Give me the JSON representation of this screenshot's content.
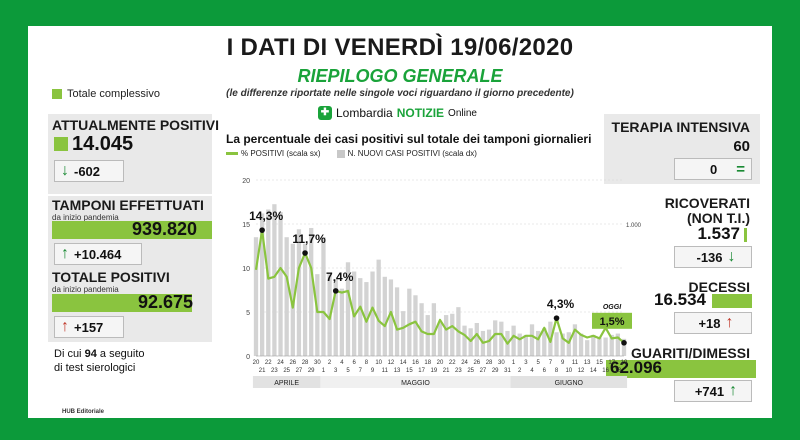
{
  "header": {
    "title": "I DATI DI VENERDÌ 19/06/2020",
    "subtitle": "RIEPILOGO GENERALE",
    "note": "(le differenze riportate nelle singole voci riguardano il giorno precedente)"
  },
  "brand": {
    "name_prefix": "Lombardia",
    "name_main": "NOTIZIE",
    "name_suffix": "Online"
  },
  "legend": {
    "totale": "Totale complessivo"
  },
  "left": {
    "positivi": {
      "label": "ATTUALMENTE POSITIVI",
      "value": "14.045",
      "delta": "-602"
    },
    "tamponi": {
      "label": "TAMPONI EFFETTUATI",
      "sublabel": "da inizio pandemia",
      "value": "939.820",
      "delta": "+10.464"
    },
    "totale_positivi": {
      "label": "TOTALE POSITIVI",
      "sublabel": "da inizio pandemia",
      "value": "92.675",
      "delta": "+157"
    },
    "sierologici": {
      "prefix": "Di cui",
      "count": "94",
      "text1": "a seguito",
      "text2": "di test sierologici"
    }
  },
  "right": {
    "terapia": {
      "label": "TERAPIA INTENSIVA",
      "value": "60",
      "delta": "0"
    },
    "ricoverati": {
      "label": "RICOVERATI",
      "label2": "(NON T.I.)",
      "value": "1.537",
      "delta": "-136"
    },
    "decessi": {
      "label": "DECESSI",
      "value": "16.534",
      "delta": "+18"
    },
    "guariti": {
      "label": "GUARITI/DIMESSI",
      "value": "62.096",
      "delta": "+741"
    }
  },
  "colors": {
    "brand_green": "#0c9a3a",
    "accent_green": "#8ac43f",
    "bar_gray": "#c8c8c8",
    "red": "#c0392b"
  },
  "footer": "HUB Editoriale",
  "chart_data": {
    "type": "line",
    "title": "La percentuale dei casi positivi sul totale dei tamponi giornalieri",
    "legend": [
      "% POSITIVI (scala sx)",
      "N. NUOVI CASI POSITIVI (scala dx)"
    ],
    "x": [
      "20",
      "21",
      "22",
      "23",
      "24",
      "25",
      "26",
      "27",
      "28",
      "29",
      "30",
      "1",
      "2",
      "3",
      "4",
      "5",
      "6",
      "7",
      "8",
      "9",
      "10",
      "11",
      "12",
      "13",
      "14",
      "15",
      "16",
      "17",
      "18",
      "19",
      "20",
      "21",
      "22",
      "23",
      "24",
      "25",
      "26",
      "27",
      "28",
      "29",
      "30",
      "31",
      "1",
      "2",
      "3",
      "4",
      "5",
      "6",
      "7",
      "8",
      "9",
      "10",
      "11",
      "12",
      "13",
      "14",
      "15",
      "16",
      "17",
      "18",
      "19"
    ],
    "months": [
      "APRILE",
      "MAGGIO",
      "GIUGNO"
    ],
    "ylim_left": [
      0,
      20
    ],
    "yticks_left": [
      "0",
      "5",
      "10",
      "15",
      "20"
    ],
    "ytick_right_label": "1.000",
    "series": [
      {
        "name": "% POSITIVI (scala sx)",
        "values": [
          9.8,
          14.3,
          8.8,
          9.0,
          10.0,
          9.0,
          5.5,
          10.0,
          11.7,
          10.0,
          5.0,
          5.0,
          4.2,
          7.4,
          7.2,
          7.4,
          4.5,
          5.6,
          3.9,
          5.5,
          4.0,
          3.4,
          5.0,
          3.0,
          3.2,
          3.6,
          3.9,
          2.8,
          2.5,
          2.5,
          4.1,
          3.0,
          3.4,
          2.8,
          2.4,
          1.7,
          2.5,
          1.5,
          1.7,
          2.5,
          2.5,
          1.4,
          2.3,
          1.9,
          2.3,
          2.3,
          1.9,
          3.2,
          1.6,
          4.3,
          2.0,
          1.5,
          3.0,
          2.4,
          2.1,
          2.3,
          2.0,
          3.2,
          2.0,
          2.1,
          1.5
        ]
      },
      {
        "name": "N. NUOVI CASI POSITIVI (scala dx)",
        "values": [
          900,
          1080,
          1110,
          1150,
          1090,
          900,
          850,
          960,
          850,
          970,
          620,
          900,
          620,
          580,
          510,
          710,
          640,
          590,
          560,
          640,
          730,
          600,
          580,
          520,
          340,
          510,
          460,
          400,
          310,
          400,
          250,
          310,
          320,
          370,
          230,
          210,
          250,
          190,
          200,
          270,
          260,
          190,
          230,
          170,
          160,
          240,
          190,
          210,
          260,
          180,
          170,
          180,
          240,
          170,
          120,
          160,
          140,
          140,
          160,
          170,
          130
        ]
      }
    ],
    "annotations": [
      {
        "label": "14,3%",
        "x": "21",
        "y": 14.3
      },
      {
        "label": "11,7%",
        "x": "28",
        "y": 11.7
      },
      {
        "label": "7,4%",
        "x": "3",
        "y": 7.4
      },
      {
        "label": "4,3%",
        "x": "8",
        "y": 4.3
      },
      {
        "label": "OGGI",
        "value": "1,5%",
        "x": "19",
        "y": 1.5
      }
    ]
  }
}
